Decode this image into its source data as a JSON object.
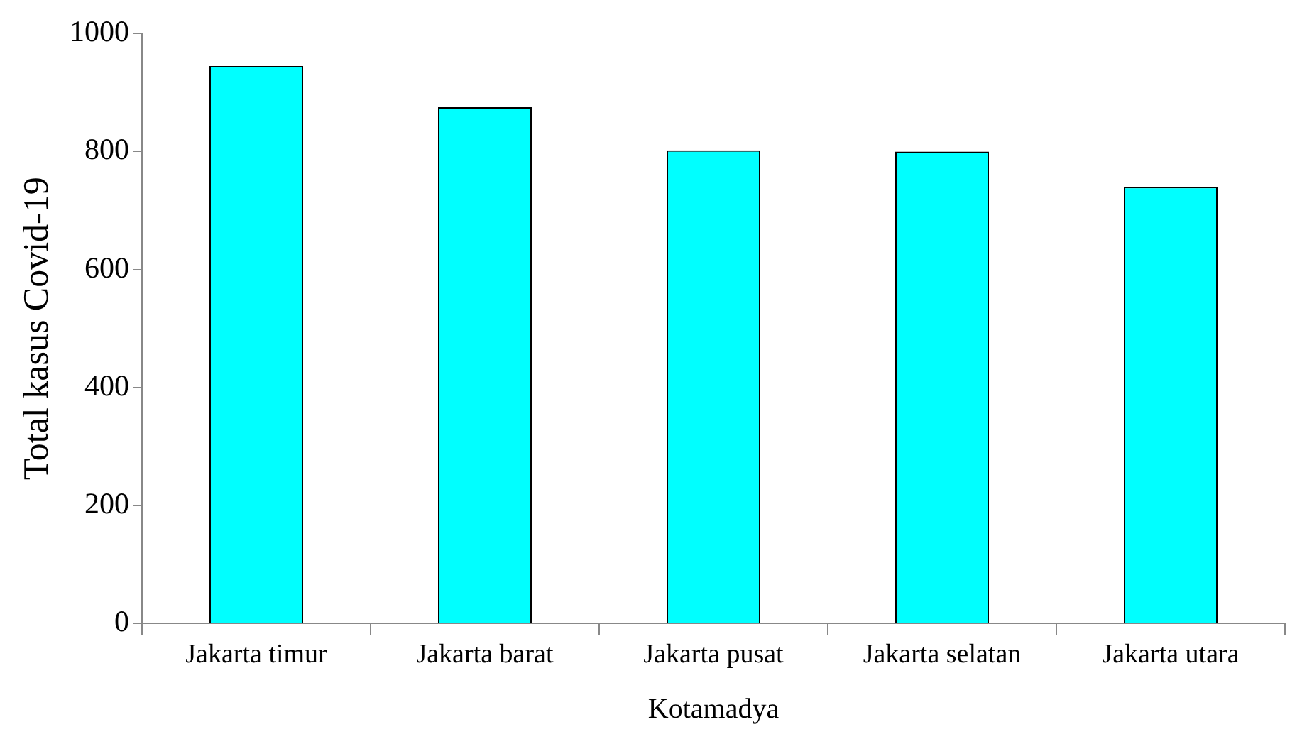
{
  "chart_data": {
    "type": "bar",
    "xlabel": "Kotamadya",
    "ylabel": "Total kasus Covid-19",
    "categories": [
      "Jakarta timur",
      "Jakarta barat",
      "Jakarta pusat",
      "Jakarta selatan",
      "Jakarta utara"
    ],
    "values": [
      945,
      875,
      802,
      800,
      740
    ],
    "color": "#00ffff",
    "ylim": [
      0,
      1000
    ],
    "yticks": [
      0,
      200,
      400,
      600,
      800,
      1000
    ],
    "grid": false,
    "legend": false
  }
}
